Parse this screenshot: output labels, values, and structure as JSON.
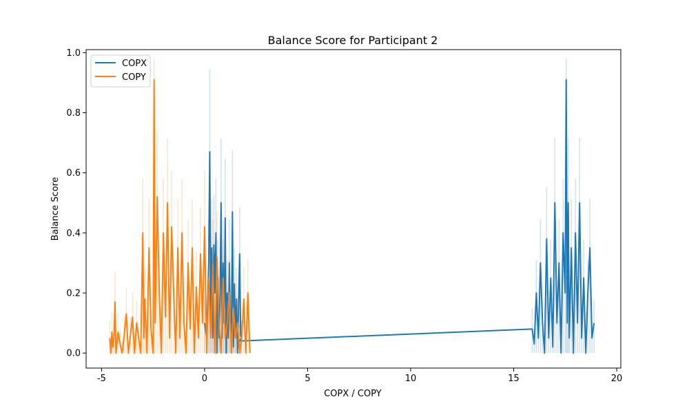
{
  "chart_data": {
    "type": "line",
    "title": "Balance Score for Participant 2",
    "xlabel": "COPX / COPY",
    "ylabel": "Balance Score",
    "xlim": [
      -5.75,
      20.2
    ],
    "ylim": [
      -0.05,
      1.01
    ],
    "xticks": [
      -5,
      0,
      5,
      10,
      15,
      20
    ],
    "yticks": [
      0.0,
      0.2,
      0.4,
      0.6,
      0.8,
      1.0
    ],
    "ytick_labels": [
      "0.0",
      "0.2",
      "0.4",
      "0.6",
      "0.8",
      "1.0"
    ],
    "grid": false,
    "legend_position": "top-left",
    "series": [
      {
        "name": "COPX",
        "color": "#1f77b4",
        "x": [
          0.0,
          0.1,
          0.2,
          0.25,
          0.3,
          0.35,
          0.4,
          0.45,
          0.5,
          0.55,
          0.6,
          0.65,
          0.7,
          0.75,
          0.8,
          0.85,
          0.9,
          0.95,
          1.0,
          1.05,
          1.1,
          1.15,
          1.2,
          1.25,
          1.3,
          1.35,
          1.4,
          1.45,
          1.5,
          1.55,
          1.6,
          1.7,
          1.75,
          1.8,
          1.7,
          15.9,
          16.0,
          16.1,
          16.2,
          16.3,
          16.4,
          16.5,
          16.6,
          16.7,
          16.8,
          16.9,
          17.0,
          17.1,
          17.2,
          17.3,
          17.4,
          17.5,
          17.55,
          17.6,
          17.65,
          17.7,
          17.8,
          17.9,
          18.0,
          18.1,
          18.2,
          18.3,
          18.4,
          18.5,
          18.6,
          18.7,
          18.8,
          18.9
        ],
        "values": [
          0.1,
          0.05,
          0.3,
          0.67,
          0.1,
          0.35,
          0.05,
          0.36,
          0.2,
          0.4,
          0.0,
          0.25,
          0.05,
          0.18,
          0.5,
          0.05,
          0.3,
          0.1,
          0.45,
          0.0,
          0.2,
          0.05,
          0.3,
          0.1,
          0.05,
          0.47,
          0.02,
          0.23,
          0.05,
          0.18,
          0.0,
          0.33,
          0.06,
          0.05,
          0.04,
          0.08,
          0.03,
          0.2,
          0.05,
          0.3,
          0.1,
          0.0,
          0.38,
          0.05,
          0.25,
          0.02,
          0.5,
          0.1,
          0.3,
          0.0,
          0.4,
          0.2,
          0.91,
          0.1,
          0.5,
          0.05,
          0.35,
          0.0,
          0.4,
          0.1,
          0.5,
          0.05,
          0.25,
          0.0,
          0.2,
          0.35,
          0.05,
          0.1
        ]
      },
      {
        "name": "COPY",
        "color": "#ff7f0e",
        "x": [
          -4.6,
          -4.55,
          -4.5,
          -4.45,
          -4.4,
          -4.35,
          -4.3,
          -4.2,
          -4.1,
          -4.0,
          -3.9,
          -3.8,
          -3.7,
          -3.6,
          -3.5,
          -3.4,
          -3.3,
          -3.2,
          -3.1,
          -3.0,
          -2.95,
          -2.9,
          -2.8,
          -2.7,
          -2.6,
          -2.5,
          -2.45,
          -2.4,
          -2.3,
          -2.2,
          -2.1,
          -2.0,
          -1.9,
          -1.8,
          -1.7,
          -1.6,
          -1.5,
          -1.4,
          -1.3,
          -1.2,
          -1.1,
          -1.0,
          -0.9,
          -0.8,
          -0.7,
          -0.6,
          -0.5,
          -0.4,
          -0.3,
          -0.2,
          -0.1,
          0.0,
          0.1,
          0.2,
          0.3,
          0.4,
          0.5,
          0.6,
          0.7,
          0.8,
          0.9,
          1.0,
          1.1,
          1.2,
          1.3,
          1.4,
          1.5,
          1.6,
          1.7,
          1.8,
          1.9,
          2.0,
          2.1,
          2.2
        ],
        "values": [
          0.05,
          0.0,
          0.07,
          0.02,
          0.05,
          0.17,
          0.0,
          0.07,
          0.03,
          0.0,
          0.06,
          0.13,
          0.0,
          0.06,
          0.12,
          0.0,
          0.1,
          0.05,
          0.0,
          0.4,
          0.05,
          0.18,
          0.0,
          0.35,
          0.08,
          0.0,
          0.91,
          0.1,
          0.52,
          0.2,
          0.0,
          0.4,
          0.12,
          0.5,
          0.05,
          0.42,
          0.2,
          0.0,
          0.35,
          0.05,
          0.4,
          0.1,
          0.0,
          0.3,
          0.08,
          0.35,
          0.0,
          0.22,
          0.05,
          0.33,
          0.1,
          0.42,
          0.0,
          0.25,
          0.05,
          0.3,
          0.0,
          0.32,
          0.1,
          0.0,
          0.25,
          0.05,
          0.1,
          0.2,
          0.0,
          0.15,
          0.05,
          0.1,
          0.0,
          0.05,
          0.18,
          0.0,
          0.2,
          0.0
        ]
      }
    ]
  }
}
